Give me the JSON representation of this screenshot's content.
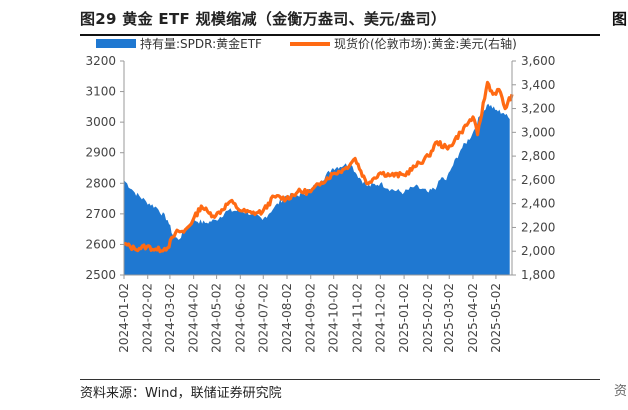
{
  "title": "图29 黄金 ETF 规模缩减（金衡万盎司、美元/盎司）",
  "source": "资料来源：Wind，联储证券研究院",
  "chart_data": {
    "type": "area+line",
    "legend_position": "top",
    "grid": false,
    "series": [
      {
        "name": "持有量:SPDR:黄金ETF",
        "kind": "area",
        "axis": "left",
        "color": "#1f78d1",
        "x": [
          "2024-01-02",
          "2024-01-16",
          "2024-01-31",
          "2024-02-14",
          "2024-02-28",
          "2024-03-06",
          "2024-03-13",
          "2024-03-20",
          "2024-04-03",
          "2024-04-17",
          "2024-05-01",
          "2024-05-16",
          "2024-06-03",
          "2024-06-17",
          "2024-07-01",
          "2024-07-16",
          "2024-08-01",
          "2024-08-16",
          "2024-09-02",
          "2024-09-16",
          "2024-10-01",
          "2024-10-16",
          "2024-10-25",
          "2024-11-01",
          "2024-11-15",
          "2024-12-02",
          "2024-12-16",
          "2025-01-02",
          "2025-01-16",
          "2025-02-03",
          "2025-02-14",
          "2025-02-20",
          "2025-02-26",
          "2025-03-03",
          "2025-03-17",
          "2025-04-01",
          "2025-04-11",
          "2025-04-22",
          "2025-05-01",
          "2025-05-12",
          "2025-05-20"
        ],
        "values": [
          2810,
          2770,
          2740,
          2720,
          2680,
          2630,
          2615,
          2640,
          2680,
          2670,
          2680,
          2710,
          2710,
          2700,
          2680,
          2720,
          2760,
          2760,
          2780,
          2810,
          2850,
          2860,
          2860,
          2830,
          2790,
          2800,
          2780,
          2770,
          2790,
          2770,
          2790,
          2820,
          2810,
          2840,
          2910,
          2960,
          3020,
          3060,
          3040,
          3030,
          3010
        ]
      },
      {
        "name": "现货价(伦敦市场):黄金:美元(右轴)",
        "kind": "line",
        "axis": "right",
        "color": "#ff6a13",
        "x": [
          "2024-01-02",
          "2024-01-16",
          "2024-02-01",
          "2024-02-14",
          "2024-02-28",
          "2024-03-06",
          "2024-03-13",
          "2024-03-20",
          "2024-04-01",
          "2024-04-12",
          "2024-04-22",
          "2024-05-01",
          "2024-05-20",
          "2024-06-03",
          "2024-06-17",
          "2024-07-01",
          "2024-07-16",
          "2024-08-01",
          "2024-08-16",
          "2024-09-02",
          "2024-09-16",
          "2024-10-01",
          "2024-10-16",
          "2024-10-30",
          "2024-11-14",
          "2024-12-02",
          "2024-12-16",
          "2025-01-02",
          "2025-01-16",
          "2025-02-03",
          "2025-02-14",
          "2025-02-28",
          "2025-03-17",
          "2025-04-02",
          "2025-04-08",
          "2025-04-21",
          "2025-04-28",
          "2025-05-06",
          "2025-05-14",
          "2025-05-23"
        ],
        "values": [
          2060,
          2020,
          2040,
          2010,
          2030,
          2120,
          2170,
          2160,
          2260,
          2380,
          2320,
          2300,
          2420,
          2340,
          2320,
          2330,
          2460,
          2440,
          2500,
          2500,
          2580,
          2650,
          2690,
          2780,
          2570,
          2660,
          2640,
          2640,
          2710,
          2800,
          2920,
          2860,
          3000,
          3130,
          2980,
          3420,
          3320,
          3360,
          3200,
          3320
        ]
      }
    ],
    "left_axis": {
      "ylim": [
        2500,
        3200
      ],
      "ticks": [
        2500,
        2600,
        2700,
        2800,
        2900,
        3000,
        3100,
        3200
      ],
      "labels": [
        "2500",
        "2600",
        "2700",
        "2800",
        "2900",
        "3000",
        "3100",
        "3200"
      ]
    },
    "right_axis": {
      "ylim": [
        1800,
        3600
      ],
      "ticks": [
        1800,
        2000,
        2200,
        2400,
        2600,
        2800,
        3000,
        3200,
        3400,
        3600
      ],
      "labels": [
        "1,800",
        "2,000",
        "2,200",
        "2,400",
        "2,600",
        "2,800",
        "3,000",
        "3,200",
        "3,400",
        "3,600"
      ]
    },
    "x_axis": {
      "range": [
        "2024-01-02",
        "2025-05-23"
      ],
      "ticks": [
        "2024-01-02",
        "2024-02-02",
        "2024-03-02",
        "2024-04-02",
        "2024-05-02",
        "2024-06-02",
        "2024-07-02",
        "2024-08-02",
        "2024-09-02",
        "2024-10-02",
        "2024-11-02",
        "2024-12-02",
        "2025-01-02",
        "2025-02-02",
        "2025-03-02",
        "2025-04-02",
        "2025-05-02"
      ],
      "labels": [
        "2024-01-02",
        "2024-02-02",
        "2024-03-02",
        "2024-04-02",
        "2024-05-02",
        "2024-06-02",
        "2024-07-02",
        "2024-08-02",
        "2024-09-02",
        "2024-10-02",
        "2024-11-02",
        "2024-12-02",
        "2025-01-02",
        "2025-02-02",
        "2025-03-02",
        "2025-04-02",
        "2025-05-02"
      ]
    }
  }
}
